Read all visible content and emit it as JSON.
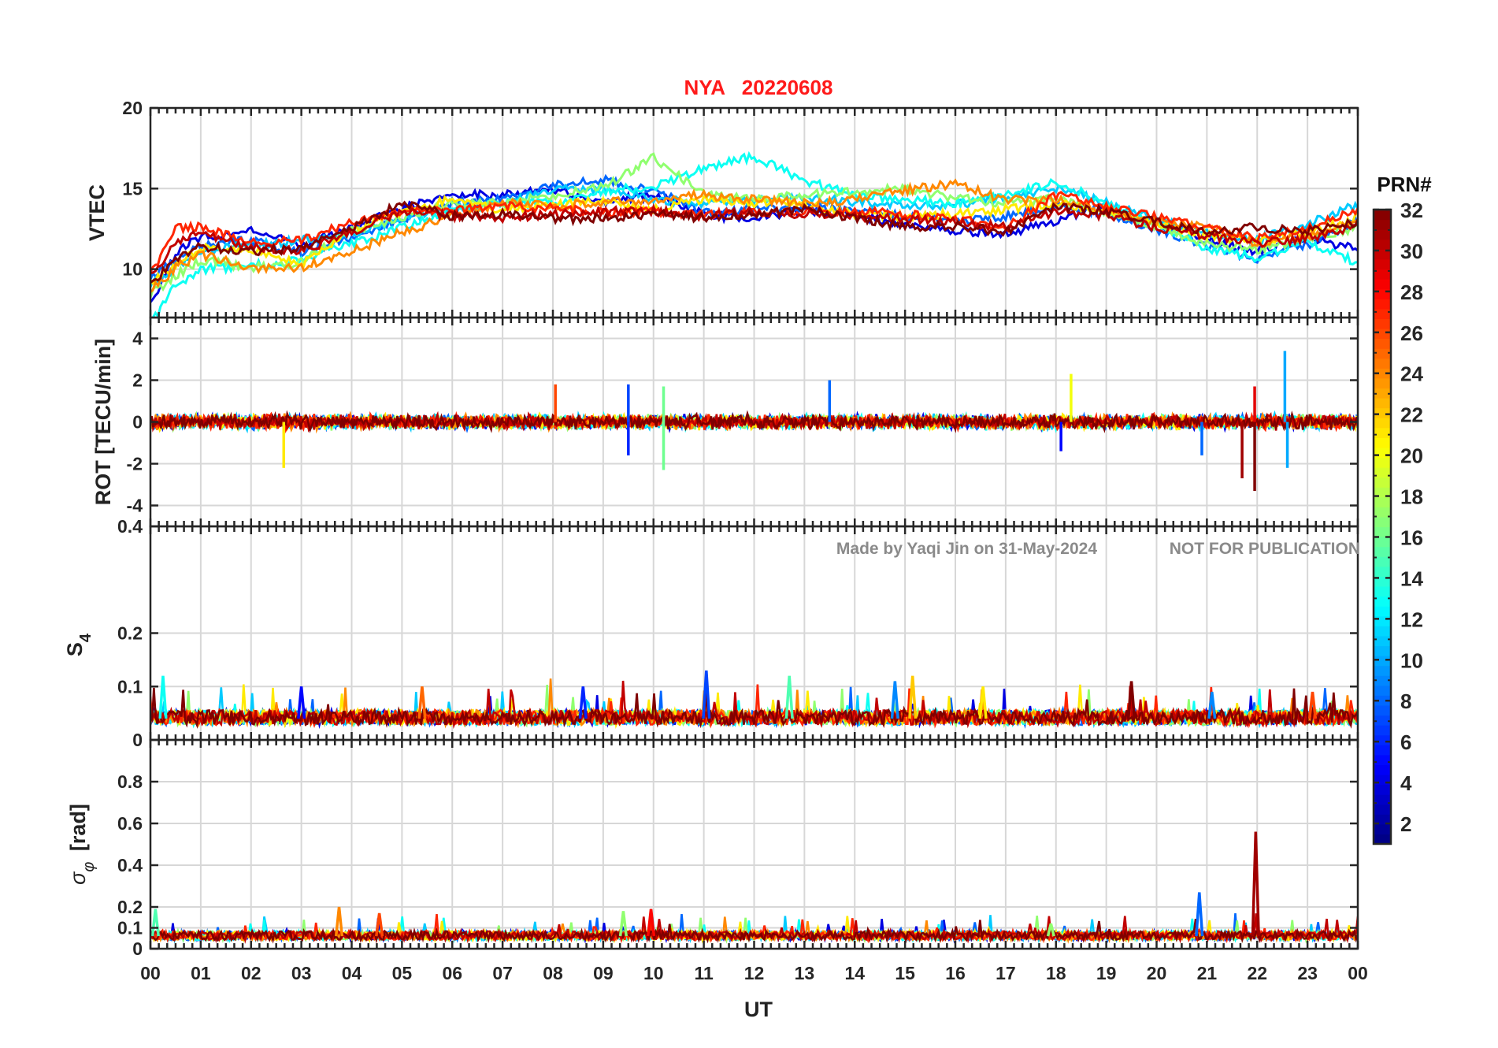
{
  "chart_data": {
    "type": "line",
    "title": "NYA   20220608",
    "xlabel": "UT",
    "x_ticks": [
      "00",
      "01",
      "02",
      "03",
      "04",
      "05",
      "06",
      "07",
      "08",
      "09",
      "10",
      "11",
      "12",
      "13",
      "14",
      "15",
      "16",
      "17",
      "18",
      "19",
      "20",
      "21",
      "22",
      "23",
      "00"
    ],
    "x_range_hours": [
      0,
      24
    ],
    "grid": true,
    "watermark_left": "Made by Yaqi Jin on 31-May-2024",
    "watermark_right": "NOT FOR PUBLICATION",
    "colorbar": {
      "label": "PRN#",
      "range": [
        1,
        32
      ],
      "ticks": [
        2,
        4,
        6,
        8,
        10,
        12,
        14,
        16,
        18,
        20,
        22,
        24,
        26,
        28,
        30,
        32
      ],
      "colormap": "jet"
    },
    "panels": [
      {
        "name": "vtec",
        "ylabel": "VTEC",
        "ylim": [
          7,
          20
        ],
        "yticks": [
          10,
          15,
          20
        ],
        "series": [
          {
            "prn": 4,
            "x": [
              0,
              0.5,
              1,
              2,
              3,
              4,
              5,
              6,
              7,
              8,
              9,
              10,
              11,
              12,
              13,
              14,
              15,
              16,
              17,
              18,
              19,
              20,
              21,
              22,
              23,
              24
            ],
            "y": [
              7.8,
              11,
              12,
              12.4,
              11.5,
              12.5,
              13.8,
              14.6,
              14.6,
              14.9,
              14.2,
              14.6,
              13.4,
              13.1,
              13.7,
              13.3,
              12.8,
              12.4,
              12.2,
              13,
              13.8,
              12.8,
              11.9,
              11.1,
              12,
              11.2
            ]
          },
          {
            "prn": 8,
            "x": [
              0,
              0.5,
              1,
              2,
              3,
              4,
              5,
              6,
              7,
              8,
              9,
              10,
              11,
              12,
              13,
              14,
              15,
              16,
              17,
              18,
              19,
              20,
              21,
              22,
              23,
              24
            ],
            "y": [
              9.5,
              10.5,
              11.5,
              11.8,
              11,
              12,
              13.1,
              14.1,
              14.4,
              15.2,
              15.6,
              14.9,
              13.5,
              13.7,
              13.9,
              13.6,
              13.3,
              13,
              13.3,
              14,
              13.5,
              12.5,
              11.5,
              10.6,
              11.5,
              13
            ]
          },
          {
            "prn": 11,
            "x": [
              0,
              0.5,
              1,
              2,
              3,
              4,
              5,
              6,
              7,
              8,
              9,
              10,
              11,
              12,
              13,
              14,
              15,
              16,
              17,
              18,
              19,
              20,
              21,
              22,
              23,
              24
            ],
            "y": [
              9,
              10.1,
              11.1,
              11.5,
              11.8,
              12.2,
              13.1,
              13.8,
              14.1,
              14.9,
              15,
              14.4,
              14,
              14.3,
              14.4,
              14.2,
              13.9,
              14,
              14.4,
              15,
              14.1,
              13.1,
              12.3,
              11.8,
              12.8,
              14
            ]
          },
          {
            "prn": 13,
            "x": [
              0,
              0.5,
              1,
              2,
              3,
              4,
              5,
              6,
              7,
              8,
              9,
              10,
              11,
              12,
              13,
              14,
              15,
              16,
              17,
              18,
              19,
              20,
              21,
              22,
              23,
              24
            ],
            "y": [
              6.6,
              9,
              10,
              10.2,
              10.6,
              11.6,
              12.6,
              13.6,
              14.1,
              14.1,
              14.9,
              15.1,
              16.3,
              17,
              15.5,
              14.6,
              14.3,
              14.1,
              14.6,
              15.4,
              14.1,
              12.8,
              11.3,
              10.7,
              11.7,
              10.4
            ]
          },
          {
            "prn": 17,
            "x": [
              0,
              0.5,
              1,
              2,
              3,
              4,
              5,
              6,
              7,
              8,
              9,
              10,
              11,
              12,
              13,
              14,
              15,
              16,
              17,
              18,
              19,
              20,
              21,
              22,
              23,
              24
            ],
            "y": [
              8.4,
              9.6,
              10.6,
              10.1,
              10.4,
              12.4,
              13.2,
              14.1,
              14.1,
              14.6,
              15.1,
              16.9,
              14.6,
              14.3,
              14.6,
              14.8,
              15,
              14.4,
              14.1,
              14.4,
              13.6,
              12.6,
              11.6,
              11.2,
              11.9,
              12.6
            ]
          },
          {
            "prn": 21,
            "x": [
              0,
              0.5,
              1,
              2,
              3,
              4,
              5,
              6,
              7,
              8,
              9,
              10,
              11,
              12,
              13,
              14,
              15,
              16,
              17,
              18,
              19,
              20,
              21,
              22,
              23,
              24
            ],
            "y": [
              9.2,
              10.3,
              11.3,
              11.2,
              10.3,
              12.4,
              13.6,
              14.3,
              13.7,
              14,
              14.2,
              13.7,
              14.4,
              14.1,
              14.1,
              13.4,
              13.3,
              13.4,
              13.7,
              14.1,
              13.6,
              12.9,
              12.1,
              11.7,
              12.3,
              13.2
            ]
          },
          {
            "prn": 24,
            "x": [
              0,
              0.5,
              1,
              2,
              3,
              4,
              5,
              6,
              7,
              8,
              9,
              10,
              11,
              12,
              13,
              14,
              15,
              16,
              17,
              18,
              19,
              20,
              21,
              22,
              23,
              24
            ],
            "y": [
              8.6,
              10.1,
              10.9,
              10.1,
              10.1,
              11.1,
              12.3,
              13.3,
              14.1,
              13.9,
              14.2,
              14.3,
              14.6,
              14.3,
              14.1,
              14.3,
              14.9,
              15.3,
              14.3,
              14.3,
              13.6,
              12.9,
              12.6,
              11.6,
              12.1,
              13.1
            ]
          },
          {
            "prn": 27,
            "x": [
              0,
              0.5,
              1,
              2,
              3,
              4,
              5,
              6,
              7,
              8,
              9,
              10,
              11,
              12,
              13,
              14,
              15,
              16,
              17,
              18,
              19,
              20,
              21,
              22,
              23,
              24
            ],
            "y": [
              9.7,
              12.5,
              12.6,
              11.6,
              11.8,
              12.9,
              13.6,
              13.6,
              13.9,
              13.8,
              13.5,
              13.6,
              13.4,
              13.5,
              13.6,
              13.6,
              13.4,
              13.1,
              12.6,
              14.6,
              13.9,
              13.3,
              12.6,
              11.9,
              12.6,
              13.6
            ]
          },
          {
            "prn": 30,
            "x": [
              0,
              0.5,
              1,
              2,
              3,
              4,
              5,
              6,
              7,
              8,
              9,
              10,
              11,
              12,
              13,
              14,
              15,
              16,
              17,
              18,
              19,
              20,
              21,
              22,
              23,
              24
            ],
            "y": [
              9.6,
              11.6,
              12.3,
              11.3,
              11.2,
              12.2,
              13.6,
              13.3,
              13.2,
              13.4,
              13.6,
              13.6,
              13.3,
              13.6,
              13.4,
              13.3,
              13.1,
              12.9,
              12.6,
              13.6,
              13.3,
              12.6,
              12.1,
              11.6,
              11.9,
              12.6
            ]
          },
          {
            "prn": 32,
            "x": [
              0,
              0.5,
              1,
              2,
              3,
              4,
              5,
              6,
              7,
              8,
              9,
              10,
              11,
              12,
              13,
              14,
              15,
              16,
              17,
              18,
              19,
              20,
              21,
              22,
              23,
              24
            ],
            "y": [
              9.1,
              10.6,
              11.4,
              11.1,
              11.3,
              12.6,
              14.1,
              13.3,
              13.4,
              13.1,
              13.2,
              13.4,
              13.2,
              13.4,
              13.7,
              13.2,
              12.6,
              12.7,
              12.3,
              13.9,
              13.6,
              12.9,
              12.3,
              12.6,
              12.4,
              12.9
            ]
          }
        ]
      },
      {
        "name": "rot",
        "ylabel": "ROT [TECU/min]",
        "ylim": [
          -5,
          5
        ],
        "yticks": [
          -4,
          -2,
          0,
          2,
          4
        ],
        "noise_amplitude": 0.3,
        "spikes": [
          {
            "prn": 21,
            "x": 2.65,
            "y": -2.2
          },
          {
            "prn": 26,
            "x": 8.05,
            "y": 1.8
          },
          {
            "prn": 7,
            "x": 9.5,
            "y": 1.8
          },
          {
            "prn": 16,
            "x": 10.2,
            "y": -2.3
          },
          {
            "prn": 16,
            "x": 10.2,
            "y": 1.7
          },
          {
            "prn": 6,
            "x": 9.5,
            "y": -1.6
          },
          {
            "prn": 8,
            "x": 13.5,
            "y": 2
          },
          {
            "prn": 20,
            "x": 18.3,
            "y": 2.3
          },
          {
            "prn": 5,
            "x": 18.1,
            "y": -1.4
          },
          {
            "prn": 31,
            "x": 21.7,
            "y": -2.7
          },
          {
            "prn": 32,
            "x": 21.95,
            "y": -3.3
          },
          {
            "prn": 29,
            "x": 21.95,
            "y": 1.7
          },
          {
            "prn": 10,
            "x": 22.55,
            "y": 3.4
          },
          {
            "prn": 10,
            "x": 22.6,
            "y": -2.2
          },
          {
            "prn": 8,
            "x": 20.9,
            "y": -1.6
          }
        ]
      },
      {
        "name": "s4",
        "ylabel": "S4",
        "ylim": [
          0,
          0.4
        ],
        "yticks": [
          0,
          0.1,
          0.2,
          0.4
        ],
        "baseline": 0.04,
        "spikes": [
          {
            "prn": 13,
            "x": 0.25,
            "y": 0.12
          },
          {
            "prn": 5,
            "x": 3,
            "y": 0.1
          },
          {
            "prn": 6,
            "x": 8.6,
            "y": 0.1
          },
          {
            "prn": 7,
            "x": 11.05,
            "y": 0.13
          },
          {
            "prn": 15,
            "x": 12.7,
            "y": 0.12
          },
          {
            "prn": 9,
            "x": 14.8,
            "y": 0.11
          },
          {
            "prn": 22,
            "x": 15.15,
            "y": 0.12
          },
          {
            "prn": 21,
            "x": 16.55,
            "y": 0.1
          },
          {
            "prn": 32,
            "x": 19.5,
            "y": 0.11
          },
          {
            "prn": 26,
            "x": 23.1,
            "y": 0.09
          },
          {
            "prn": 25,
            "x": 5.4,
            "y": 0.1
          },
          {
            "prn": 9,
            "x": 21.1,
            "y": 0.09
          }
        ]
      },
      {
        "name": "sigma_phi",
        "ylabel": "σ_φ [rad]",
        "ylim": [
          0,
          1
        ],
        "yticks": [
          0,
          0.1,
          0.2,
          0.4,
          0.6,
          0.8
        ],
        "baseline": 0.06,
        "spikes": [
          {
            "prn": 15,
            "x": 0.1,
            "y": 0.19
          },
          {
            "prn": 24,
            "x": 3.75,
            "y": 0.2
          },
          {
            "prn": 26,
            "x": 4.55,
            "y": 0.17
          },
          {
            "prn": 17,
            "x": 9.4,
            "y": 0.18
          },
          {
            "prn": 28,
            "x": 9.95,
            "y": 0.19
          },
          {
            "prn": 8,
            "x": 20.85,
            "y": 0.27
          },
          {
            "prn": 31,
            "x": 21.97,
            "y": 0.56
          },
          {
            "prn": 17,
            "x": 17.9,
            "y": 0.12
          }
        ]
      }
    ]
  }
}
